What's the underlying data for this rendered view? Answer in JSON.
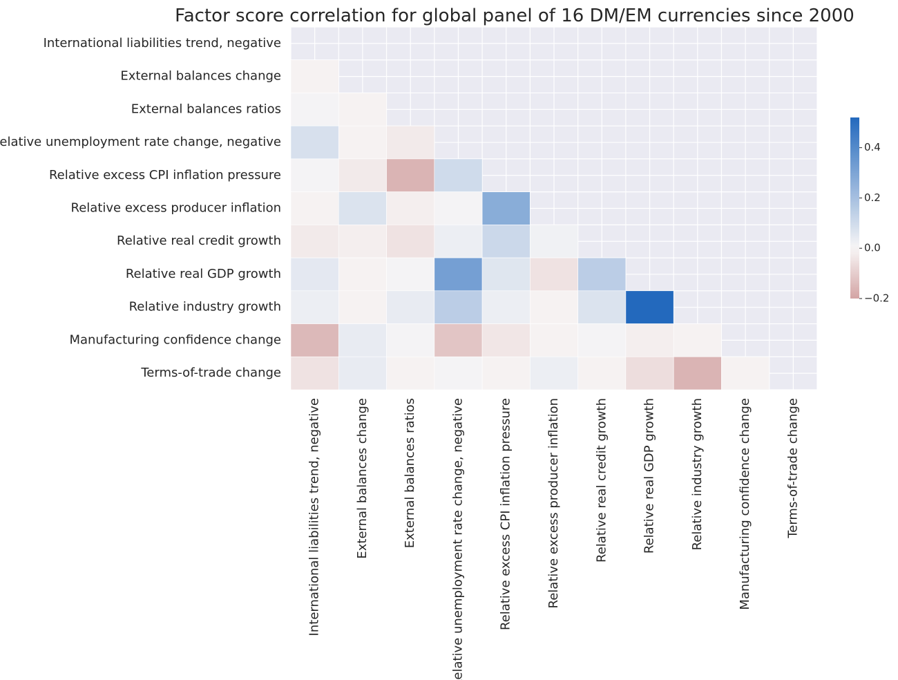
{
  "chart_data": {
    "type": "heatmap",
    "title": "Factor score correlation for global panel of 16 DM/EM currencies since 2000",
    "xlabel": "",
    "ylabel": "",
    "mask": "upper-triangle",
    "grid": true,
    "legend": "right",
    "labels": [
      "International liabilities trend, negative",
      "External balances change",
      "External balances ratios",
      "Relative unemployment rate change, negative",
      "Relative excess CPI inflation pressure",
      "Relative excess producer inflation",
      "Relative real credit growth",
      "Relative real GDP growth",
      "Relative industry growth",
      "Manufacturing confidence change",
      "Terms-of-trade change"
    ],
    "values": [
      [
        null,
        null,
        null,
        null,
        null,
        null,
        null,
        null,
        null,
        null,
        null
      ],
      [
        -0.01,
        null,
        null,
        null,
        null,
        null,
        null,
        null,
        null,
        null,
        null
      ],
      [
        0.01,
        -0.01,
        null,
        null,
        null,
        null,
        null,
        null,
        null,
        null,
        null
      ],
      [
        0.08,
        -0.01,
        -0.03,
        null,
        null,
        null,
        null,
        null,
        null,
        null,
        null
      ],
      [
        0.01,
        -0.03,
        -0.16,
        0.1,
        null,
        null,
        null,
        null,
        null,
        null,
        null
      ],
      [
        -0.01,
        0.07,
        -0.02,
        0.01,
        0.27,
        null,
        null,
        null,
        null,
        null,
        null
      ],
      [
        -0.03,
        -0.02,
        -0.05,
        0.03,
        0.11,
        0.02,
        null,
        null,
        null,
        null,
        null
      ],
      [
        0.05,
        -0.01,
        0.01,
        0.32,
        0.06,
        -0.05,
        0.15,
        null,
        null,
        null,
        null
      ],
      [
        0.03,
        -0.01,
        0.04,
        0.15,
        0.03,
        -0.01,
        0.07,
        0.52,
        null,
        null,
        null
      ],
      [
        -0.15,
        0.04,
        0.01,
        -0.12,
        -0.04,
        -0.01,
        0.01,
        -0.02,
        -0.01,
        null,
        null
      ],
      [
        -0.05,
        0.04,
        -0.01,
        0.01,
        -0.01,
        0.03,
        -0.01,
        -0.06,
        -0.16,
        -0.01,
        null
      ]
    ],
    "colorbar": {
      "min": -0.2,
      "max": 0.52,
      "ticks": [
        -0.2,
        0.0,
        0.2,
        0.4
      ],
      "tick_labels": [
        "−0.2",
        "0.0",
        "0.2",
        "0.4"
      ]
    },
    "colors": {
      "positive": "#2369bd",
      "neutral": "#f8f6f6",
      "negative": "#d3a4a4",
      "masked": "#eaeaf2",
      "grid": "#ffffff"
    }
  }
}
